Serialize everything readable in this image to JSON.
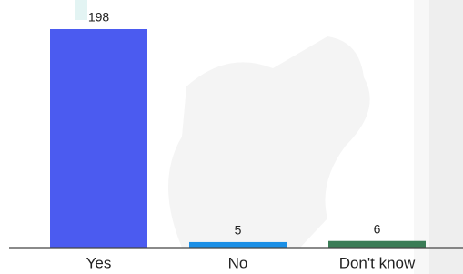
{
  "chart_data": {
    "type": "bar",
    "categories": [
      "Yes",
      "No",
      "Don't know"
    ],
    "values": [
      198,
      5,
      6
    ],
    "colors": [
      "#4b5bf0",
      "#1b8fe6",
      "#3a7c56"
    ]
  }
}
